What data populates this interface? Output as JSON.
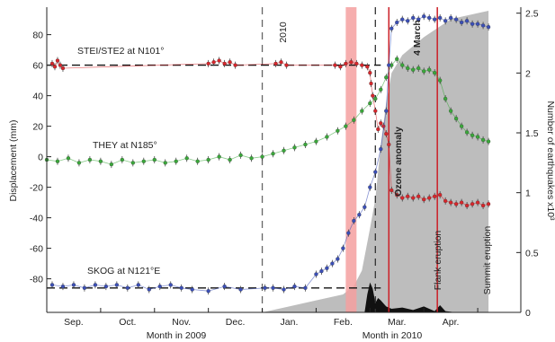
{
  "chart_data": {
    "type": "scatter",
    "left_axis": {
      "label": "Displacement (mm)",
      "ticks": [
        80,
        60,
        40,
        20,
        0,
        -20,
        -40,
        -60,
        -80
      ],
      "ylim": [
        -102,
        98
      ]
    },
    "right_axis": {
      "label": "Number of earthquakes x10³",
      "ticks": [
        "2.5",
        "2",
        "1.5",
        "1",
        "0.5",
        "0"
      ],
      "ylim": [
        0,
        2.55
      ]
    },
    "x_axis": {
      "month_ticks": [
        "Sep.",
        "Oct.",
        "Nov.",
        "Dec.",
        "Jan.",
        "Feb.",
        "Mar.",
        "Apr."
      ],
      "label_left": "Month in 2009",
      "label_right": "Month in 2010",
      "xlim": [
        0,
        8.8
      ]
    },
    "annotations": {
      "year_line_label": "2010",
      "march_label": "4 March",
      "ozone_label": "Ozone anomaly",
      "flank_label": "Flank eruption",
      "summit_label": "Summit eruption"
    },
    "events": {
      "year_line_x": 4.0,
      "march4_x": 6.1,
      "ozone_x": [
        5.55,
        5.75
      ],
      "flank_x": 6.35,
      "summit_x": 7.25
    },
    "reference_lines": [
      {
        "name": "STEI/STE2 at N101°",
        "y": 60
      },
      {
        "name": "SKOG at N121°E",
        "y": -86
      }
    ],
    "series": [
      {
        "name": "STEI/STE2 at N101°",
        "color": "#d9262b",
        "points": [
          [
            0.1,
            61
          ],
          [
            0.15,
            59
          ],
          [
            0.2,
            63
          ],
          [
            0.25,
            60
          ],
          [
            0.3,
            58
          ],
          [
            3.0,
            61
          ],
          [
            3.1,
            62
          ],
          [
            3.2,
            63
          ],
          [
            3.3,
            61
          ],
          [
            3.4,
            62
          ],
          [
            3.5,
            60
          ],
          [
            4.25,
            61
          ],
          [
            4.35,
            62
          ],
          [
            4.45,
            60
          ],
          [
            5.35,
            60
          ],
          [
            5.45,
            59
          ],
          [
            5.55,
            61
          ],
          [
            5.65,
            62
          ],
          [
            5.75,
            61
          ],
          [
            5.85,
            60
          ],
          [
            5.95,
            59
          ],
          [
            6.0,
            55
          ],
          [
            6.02,
            48
          ],
          [
            6.05,
            40
          ],
          [
            6.1,
            30
          ],
          [
            6.15,
            18
          ],
          [
            6.2,
            22
          ],
          [
            6.25,
            20
          ],
          [
            6.3,
            15
          ],
          [
            6.35,
            8
          ],
          [
            6.4,
            -22
          ],
          [
            6.5,
            -25
          ],
          [
            6.6,
            -27
          ],
          [
            6.7,
            -26
          ],
          [
            6.8,
            -27
          ],
          [
            6.9,
            -26
          ],
          [
            7.0,
            -28
          ],
          [
            7.1,
            -27
          ],
          [
            7.2,
            -26
          ],
          [
            7.3,
            -25
          ],
          [
            7.4,
            -29
          ],
          [
            7.5,
            -30
          ],
          [
            7.6,
            -31
          ],
          [
            7.7,
            -30
          ],
          [
            7.8,
            -32
          ],
          [
            7.9,
            -31
          ],
          [
            8.0,
            -30
          ],
          [
            8.1,
            -32
          ],
          [
            8.2,
            -31
          ]
        ]
      },
      {
        "name": "THEY at N185°",
        "color": "#3aa83a",
        "points": [
          [
            0.0,
            -2
          ],
          [
            0.2,
            -3
          ],
          [
            0.4,
            -1
          ],
          [
            0.6,
            -4
          ],
          [
            0.8,
            -2
          ],
          [
            1.0,
            -3
          ],
          [
            1.2,
            -5
          ],
          [
            1.4,
            -2
          ],
          [
            1.6,
            -4
          ],
          [
            1.8,
            -3
          ],
          [
            2.0,
            -2
          ],
          [
            2.2,
            -4
          ],
          [
            2.4,
            -3
          ],
          [
            2.6,
            -1
          ],
          [
            2.8,
            -3
          ],
          [
            3.0,
            -2
          ],
          [
            3.2,
            0
          ],
          [
            3.4,
            -2
          ],
          [
            3.6,
            1
          ],
          [
            3.8,
            -1
          ],
          [
            4.0,
            0
          ],
          [
            4.2,
            2
          ],
          [
            4.4,
            4
          ],
          [
            4.6,
            6
          ],
          [
            4.8,
            8
          ],
          [
            5.0,
            10
          ],
          [
            5.2,
            13
          ],
          [
            5.4,
            17
          ],
          [
            5.55,
            20
          ],
          [
            5.7,
            24
          ],
          [
            5.85,
            30
          ],
          [
            6.0,
            35
          ],
          [
            6.1,
            38
          ],
          [
            6.2,
            44
          ],
          [
            6.3,
            52
          ],
          [
            6.4,
            60
          ],
          [
            6.5,
            64
          ],
          [
            6.6,
            60
          ],
          [
            6.7,
            58
          ],
          [
            6.8,
            57
          ],
          [
            6.9,
            58
          ],
          [
            7.0,
            56
          ],
          [
            7.1,
            57
          ],
          [
            7.2,
            55
          ],
          [
            7.3,
            50
          ],
          [
            7.4,
            38
          ],
          [
            7.5,
            30
          ],
          [
            7.6,
            25
          ],
          [
            7.7,
            20
          ],
          [
            7.8,
            16
          ],
          [
            7.9,
            14
          ],
          [
            8.0,
            13
          ],
          [
            8.1,
            11
          ],
          [
            8.2,
            10
          ]
        ]
      },
      {
        "name": "SKOG at N121°E",
        "color": "#3b4fb8",
        "points": [
          [
            0.1,
            -84
          ],
          [
            0.3,
            -85
          ],
          [
            0.5,
            -84
          ],
          [
            0.7,
            -86
          ],
          [
            0.9,
            -84
          ],
          [
            1.1,
            -85
          ],
          [
            1.3,
            -84
          ],
          [
            1.5,
            -86
          ],
          [
            1.7,
            -84
          ],
          [
            1.9,
            -87
          ],
          [
            2.1,
            -85
          ],
          [
            2.3,
            -84
          ],
          [
            2.5,
            -86
          ],
          [
            2.7,
            -87
          ],
          [
            3.0,
            -88
          ],
          [
            3.3,
            -85
          ],
          [
            3.6,
            -87
          ],
          [
            4.05,
            -86
          ],
          [
            4.2,
            -86
          ],
          [
            4.4,
            -87
          ],
          [
            4.6,
            -85
          ],
          [
            4.8,
            -86
          ],
          [
            5.0,
            -77
          ],
          [
            5.1,
            -75
          ],
          [
            5.2,
            -73
          ],
          [
            5.3,
            -70
          ],
          [
            5.4,
            -67
          ],
          [
            5.5,
            -60
          ],
          [
            5.6,
            -50
          ],
          [
            5.7,
            -42
          ],
          [
            5.8,
            -38
          ],
          [
            5.9,
            -33
          ],
          [
            6.0,
            -20
          ],
          [
            6.1,
            -10
          ],
          [
            6.2,
            5
          ],
          [
            6.3,
            30
          ],
          [
            6.35,
            60
          ],
          [
            6.4,
            84
          ],
          [
            6.5,
            88
          ],
          [
            6.6,
            90
          ],
          [
            6.7,
            89
          ],
          [
            6.8,
            91
          ],
          [
            6.9,
            90
          ],
          [
            7.0,
            92
          ],
          [
            7.1,
            91
          ],
          [
            7.2,
            90
          ],
          [
            7.3,
            91
          ],
          [
            7.4,
            89
          ],
          [
            7.5,
            91
          ],
          [
            7.6,
            90
          ],
          [
            7.7,
            88
          ],
          [
            7.8,
            89
          ],
          [
            7.9,
            87
          ],
          [
            8.0,
            87
          ],
          [
            8.1,
            86
          ],
          [
            8.2,
            85
          ]
        ]
      },
      {
        "name": "cumulative earthquakes",
        "color": "#bdbdbd",
        "axis": "right",
        "points": [
          [
            4.0,
            0
          ],
          [
            4.5,
            0.05
          ],
          [
            5.0,
            0.1
          ],
          [
            5.5,
            0.15
          ],
          [
            5.7,
            0.22
          ],
          [
            5.85,
            0.35
          ],
          [
            6.0,
            0.7
          ],
          [
            6.1,
            0.95
          ],
          [
            6.2,
            1.4
          ],
          [
            6.3,
            1.75
          ],
          [
            6.4,
            2.0
          ],
          [
            6.6,
            2.15
          ],
          [
            7.0,
            2.3
          ],
          [
            7.5,
            2.45
          ],
          [
            8.0,
            2.5
          ],
          [
            8.2,
            2.52
          ]
        ]
      },
      {
        "name": "daily earthquakes",
        "color": "#111111",
        "axis": "right",
        "points": [
          [
            5.9,
            0
          ],
          [
            5.95,
            0.15
          ],
          [
            6.0,
            0.25
          ],
          [
            6.05,
            0.2
          ],
          [
            6.1,
            0.08
          ],
          [
            6.15,
            0.12
          ],
          [
            6.2,
            0.1
          ],
          [
            6.3,
            0.05
          ],
          [
            6.4,
            0.03
          ],
          [
            6.6,
            0.04
          ],
          [
            6.8,
            0.02
          ],
          [
            7.0,
            0.05
          ],
          [
            7.2,
            0.01
          ],
          [
            7.3,
            0.06
          ],
          [
            7.4,
            0.01
          ],
          [
            7.6,
            0
          ],
          [
            8.0,
            0
          ]
        ]
      }
    ]
  }
}
